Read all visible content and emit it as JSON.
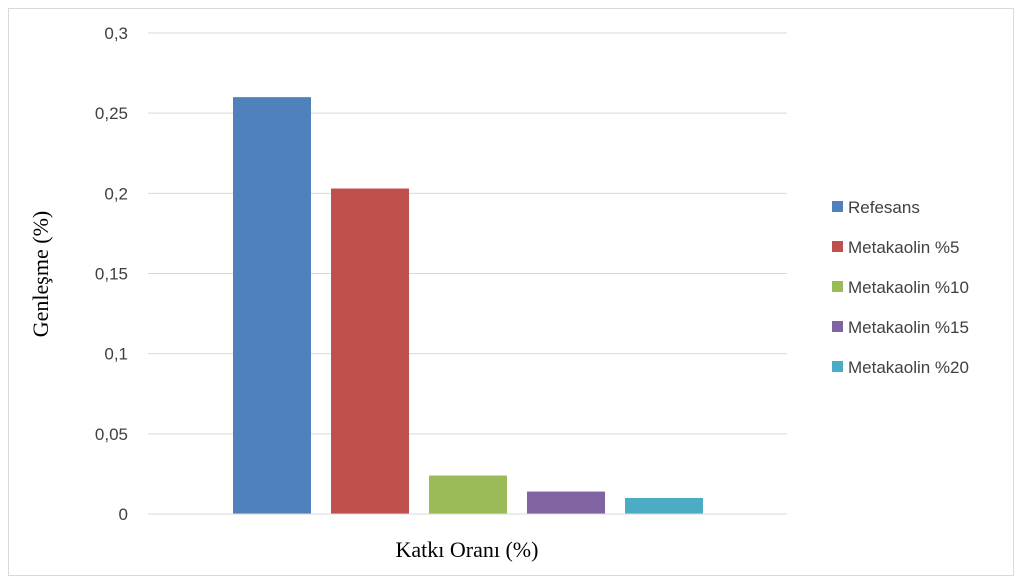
{
  "chart_data": {
    "type": "bar",
    "title": "",
    "xlabel": "Katkı Oranı (%)",
    "ylabel": "Genleşme (%)",
    "ylim": [
      0,
      0.3
    ],
    "yticks": [
      "0",
      "0,05",
      "0,1",
      "0,15",
      "0,2",
      "0,25",
      "0,3"
    ],
    "grid": true,
    "legend_position": "right",
    "series": [
      {
        "name": "Refesans",
        "value": 0.26,
        "color": "#4f81bd"
      },
      {
        "name": "Metakaolin %5",
        "value": 0.203,
        "color": "#c0504d"
      },
      {
        "name": "Metakaolin %10",
        "value": 0.024,
        "color": "#9bbb59"
      },
      {
        "name": "Metakaolin %15",
        "value": 0.014,
        "color": "#8064a2"
      },
      {
        "name": "Metakaolin %20",
        "value": 0.01,
        "color": "#4bacc6"
      }
    ]
  }
}
